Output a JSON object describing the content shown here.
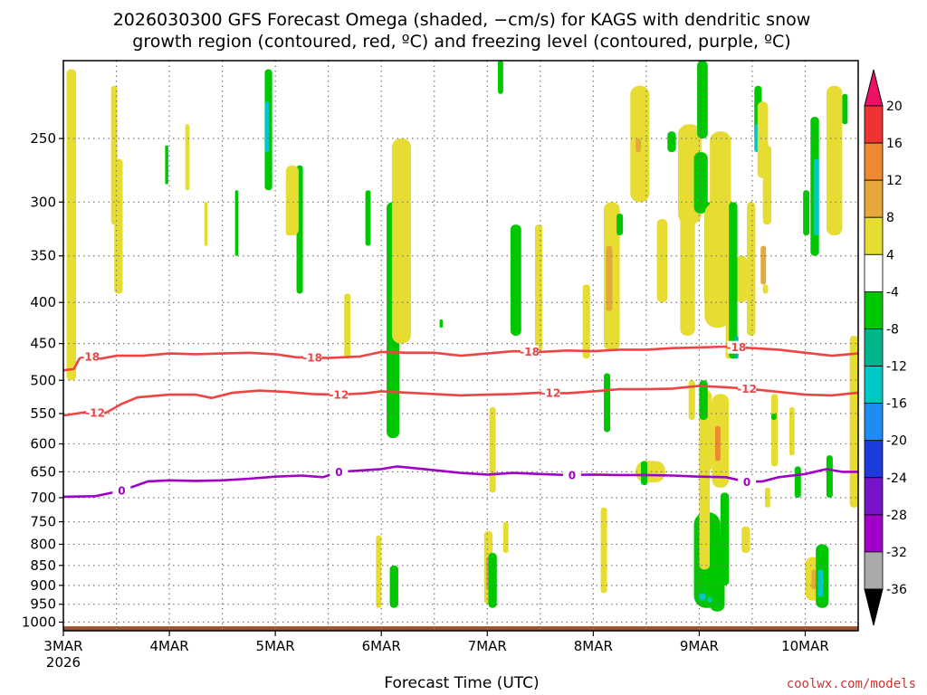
{
  "chart_data": {
    "type": "heatmap",
    "title": "2026030300 GFS Forecast Omega (shaded, −cm/s) for KAGS with dendritic snow",
    "subtitle": "growth region (contoured, red, ºC) and freezing level (contoured, purple, ºC)",
    "xlabel": "Forecast Time (UTC)",
    "ylabel": "",
    "credit": "coolwx.com/models",
    "x_ticks": [
      "3MAR",
      "4MAR",
      "5MAR",
      "6MAR",
      "7MAR",
      "8MAR",
      "9MAR",
      "10MAR"
    ],
    "x_tick_year": "2026",
    "x_range_days": [
      0,
      7.5
    ],
    "y_axis_scale": "log-pressure (inverted)",
    "y_range_hpa": [
      1025,
      200
    ],
    "y_ticks": [
      250,
      300,
      350,
      400,
      450,
      500,
      550,
      600,
      650,
      700,
      750,
      800,
      850,
      900,
      950,
      1000
    ],
    "grid": true,
    "colorbar": {
      "labels": [
        "20",
        "16",
        "12",
        "8",
        "4",
        "-4",
        "-8",
        "-12",
        "-16",
        "-20",
        "-24",
        "-28",
        "-32",
        "-36"
      ],
      "colors": [
        "#ee1166",
        "#ee3333",
        "#ee8833",
        "#e6a83a",
        "#e6dc32",
        "#ffffff",
        "#00c800",
        "#00b48c",
        "#00c8c8",
        "#1e8cf0",
        "#1e3cdc",
        "#7814c8",
        "#a000c8",
        "#aaaaaa",
        "#000000"
      ]
    },
    "omega_colors": {
      "yellow": "#e6dc32",
      "orange": "#e6a83a",
      "darkorange": "#ee8833",
      "green": "#00c800",
      "teal": "#00b48c",
      "cyan": "#00c8c8"
    },
    "ground_color": "#a0522d",
    "contours": [
      {
        "name": "-18",
        "color": "#ee4444",
        "points": [
          [
            0,
            486
          ],
          [
            0.1,
            484
          ],
          [
            0.15,
            470
          ],
          [
            0.2,
            466
          ],
          [
            0.35,
            470
          ],
          [
            0.5,
            466
          ],
          [
            0.75,
            466
          ],
          [
            1,
            463
          ],
          [
            1.25,
            464
          ],
          [
            1.5,
            463
          ],
          [
            1.75,
            462
          ],
          [
            2,
            464
          ],
          [
            2.2,
            468
          ],
          [
            2.5,
            469
          ],
          [
            2.8,
            467
          ],
          [
            3,
            461
          ],
          [
            3.25,
            462
          ],
          [
            3.5,
            462
          ],
          [
            3.75,
            466
          ],
          [
            4,
            463
          ],
          [
            4.25,
            460
          ],
          [
            4.5,
            461
          ],
          [
            4.75,
            459
          ],
          [
            5,
            460
          ],
          [
            5.25,
            458
          ],
          [
            5.5,
            458
          ],
          [
            5.75,
            456
          ],
          [
            6,
            455
          ],
          [
            6.25,
            454
          ],
          [
            6.5,
            456
          ],
          [
            6.75,
            458
          ],
          [
            7,
            462
          ],
          [
            7.25,
            466
          ],
          [
            7.5,
            463
          ]
        ],
        "labels": [
          [
            0.25,
            "-18"
          ],
          [
            2.35,
            "-18"
          ],
          [
            4.4,
            "-18"
          ],
          [
            6.35,
            "-18"
          ]
        ]
      },
      {
        "name": "-12",
        "color": "#ee4444",
        "points": [
          [
            0,
            553
          ],
          [
            0.2,
            548
          ],
          [
            0.4,
            549
          ],
          [
            0.55,
            535
          ],
          [
            0.7,
            525
          ],
          [
            1,
            521
          ],
          [
            1.25,
            521
          ],
          [
            1.4,
            526
          ],
          [
            1.6,
            518
          ],
          [
            1.85,
            515
          ],
          [
            2.1,
            517
          ],
          [
            2.35,
            520
          ],
          [
            2.6,
            521
          ],
          [
            2.85,
            519
          ],
          [
            3,
            516
          ],
          [
            3.25,
            518
          ],
          [
            3.5,
            520
          ],
          [
            3.75,
            522
          ],
          [
            4,
            521
          ],
          [
            4.25,
            520
          ],
          [
            4.5,
            518
          ],
          [
            4.75,
            519
          ],
          [
            5,
            516
          ],
          [
            5.25,
            513
          ],
          [
            5.5,
            513
          ],
          [
            5.75,
            512
          ],
          [
            6,
            508
          ],
          [
            6.25,
            510
          ],
          [
            6.5,
            513
          ],
          [
            6.75,
            517
          ],
          [
            7,
            521
          ],
          [
            7.25,
            522
          ],
          [
            7.5,
            518
          ]
        ],
        "labels": [
          [
            0.3,
            "-12"
          ],
          [
            2.6,
            "-12"
          ],
          [
            4.6,
            "-12"
          ],
          [
            6.45,
            "-12"
          ]
        ]
      },
      {
        "name": "0",
        "color": "#a000c8",
        "points": [
          [
            0,
            698
          ],
          [
            0.3,
            697
          ],
          [
            0.55,
            686
          ],
          [
            0.8,
            668
          ],
          [
            1,
            666
          ],
          [
            1.25,
            667
          ],
          [
            1.5,
            666
          ],
          [
            1.75,
            663
          ],
          [
            2,
            659
          ],
          [
            2.25,
            657
          ],
          [
            2.45,
            660
          ],
          [
            2.6,
            650
          ],
          [
            2.85,
            647
          ],
          [
            3,
            645
          ],
          [
            3.15,
            640
          ],
          [
            3.3,
            643
          ],
          [
            3.5,
            647
          ],
          [
            3.75,
            652
          ],
          [
            4,
            655
          ],
          [
            4.25,
            652
          ],
          [
            4.5,
            654
          ],
          [
            4.75,
            656
          ],
          [
            5,
            655
          ],
          [
            5.25,
            656
          ],
          [
            5.5,
            656
          ],
          [
            5.75,
            657
          ],
          [
            6,
            659
          ],
          [
            6.25,
            660
          ],
          [
            6.45,
            669
          ],
          [
            6.6,
            668
          ],
          [
            6.75,
            660
          ],
          [
            7,
            654
          ],
          [
            7.2,
            645
          ],
          [
            7.35,
            650
          ],
          [
            7.5,
            650
          ]
        ],
        "labels": [
          [
            0.55,
            "0"
          ],
          [
            2.6,
            "0"
          ],
          [
            4.8,
            "0"
          ],
          [
            6.45,
            "0"
          ]
        ]
      }
    ],
    "omega_regions": [
      {
        "c": "yellow",
        "d": 0.03,
        "w": 0.09,
        "p1": 205,
        "p2": 500
      },
      {
        "c": "yellow",
        "d": 0.45,
        "w": 0.06,
        "p1": 215,
        "p2": 320
      },
      {
        "c": "yellow",
        "d": 0.48,
        "w": 0.08,
        "p1": 265,
        "p2": 390
      },
      {
        "c": "green",
        "d": 0.96,
        "w": 0.03,
        "p1": 255,
        "p2": 285
      },
      {
        "c": "yellow",
        "d": 1.15,
        "w": 0.04,
        "p1": 240,
        "p2": 290
      },
      {
        "c": "yellow",
        "d": 1.33,
        "w": 0.03,
        "p1": 300,
        "p2": 340
      },
      {
        "c": "green",
        "d": 1.62,
        "w": 0.03,
        "p1": 290,
        "p2": 350
      },
      {
        "c": "green",
        "d": 1.9,
        "w": 0.07,
        "p1": 205,
        "p2": 290
      },
      {
        "c": "cyan",
        "d": 1.9,
        "w": 0.04,
        "p1": 225,
        "p2": 260
      },
      {
        "c": "yellow",
        "d": 2.1,
        "w": 0.05,
        "p1": 280,
        "p2": 330
      },
      {
        "c": "green",
        "d": 2.2,
        "w": 0.06,
        "p1": 270,
        "p2": 390
      },
      {
        "c": "yellow",
        "d": 2.1,
        "w": 0.12,
        "p1": 270,
        "p2": 330
      },
      {
        "c": "yellow",
        "d": 2.65,
        "w": 0.06,
        "p1": 390,
        "p2": 470
      },
      {
        "c": "green",
        "d": 2.85,
        "w": 0.05,
        "p1": 290,
        "p2": 340
      },
      {
        "c": "green",
        "d": 3.05,
        "w": 0.12,
        "p1": 300,
        "p2": 590
      },
      {
        "c": "yellow",
        "d": 3.1,
        "w": 0.18,
        "p1": 250,
        "p2": 450
      },
      {
        "c": "yellow",
        "d": 2.95,
        "w": 0.05,
        "p1": 780,
        "p2": 960
      },
      {
        "c": "green",
        "d": 3.08,
        "w": 0.08,
        "p1": 850,
        "p2": 960
      },
      {
        "c": "green",
        "d": 3.55,
        "w": 0.03,
        "p1": 420,
        "p2": 430
      },
      {
        "c": "yellow",
        "d": 3.97,
        "w": 0.08,
        "p1": 770,
        "p2": 950
      },
      {
        "c": "orange",
        "d": 3.99,
        "w": 0.04,
        "p1": 830,
        "p2": 910
      },
      {
        "c": "yellow",
        "d": 4.02,
        "w": 0.06,
        "p1": 540,
        "p2": 690
      },
      {
        "c": "green",
        "d": 4.01,
        "w": 0.08,
        "p1": 820,
        "p2": 960
      },
      {
        "c": "green",
        "d": 4.22,
        "w": 0.1,
        "p1": 320,
        "p2": 440
      },
      {
        "c": "yellow",
        "d": 4.15,
        "w": 0.05,
        "p1": 750,
        "p2": 820
      },
      {
        "c": "green",
        "d": 4.1,
        "w": 0.05,
        "p1": 200,
        "p2": 220
      },
      {
        "c": "yellow",
        "d": 4.45,
        "w": 0.07,
        "p1": 320,
        "p2": 460
      },
      {
        "c": "yellow",
        "d": 4.9,
        "w": 0.07,
        "p1": 380,
        "p2": 470
      },
      {
        "c": "yellow",
        "d": 5.07,
        "w": 0.06,
        "p1": 720,
        "p2": 920
      },
      {
        "c": "yellow",
        "d": 5.1,
        "w": 0.15,
        "p1": 300,
        "p2": 460
      },
      {
        "c": "orange",
        "d": 5.12,
        "w": 0.06,
        "p1": 340,
        "p2": 410
      },
      {
        "c": "green",
        "d": 5.1,
        "w": 0.06,
        "p1": 490,
        "p2": 580
      },
      {
        "c": "yellow",
        "d": 5.35,
        "w": 0.18,
        "p1": 215,
        "p2": 300
      },
      {
        "c": "orange",
        "d": 5.4,
        "w": 0.05,
        "p1": 250,
        "p2": 260
      },
      {
        "c": "green",
        "d": 5.22,
        "w": 0.06,
        "p1": 310,
        "p2": 330
      },
      {
        "c": "yellow",
        "d": 5.6,
        "w": 0.1,
        "p1": 315,
        "p2": 400
      },
      {
        "c": "green",
        "d": 5.7,
        "w": 0.08,
        "p1": 245,
        "p2": 260
      },
      {
        "c": "yellow",
        "d": 5.4,
        "w": 0.28,
        "p1": 630,
        "p2": 670
      },
      {
        "c": "green",
        "d": 5.45,
        "w": 0.06,
        "p1": 630,
        "p2": 675
      },
      {
        "c": "yellow",
        "d": 5.82,
        "w": 0.14,
        "p1": 300,
        "p2": 440
      },
      {
        "c": "yellow",
        "d": 5.8,
        "w": 0.22,
        "p1": 240,
        "p2": 320
      },
      {
        "c": "yellow",
        "d": 5.9,
        "w": 0.06,
        "p1": 500,
        "p2": 560
      },
      {
        "c": "green",
        "d": 5.95,
        "w": 0.13,
        "p1": 260,
        "p2": 310
      },
      {
        "c": "green",
        "d": 5.98,
        "w": 0.1,
        "p1": 200,
        "p2": 250
      },
      {
        "c": "yellow",
        "d": 6.0,
        "w": 0.12,
        "p1": 515,
        "p2": 650
      },
      {
        "c": "orange",
        "d": 6.13,
        "w": 0.05,
        "p1": 590,
        "p2": 630
      },
      {
        "c": "green",
        "d": 6.05,
        "w": 0.07,
        "p1": 300,
        "p2": 400
      },
      {
        "c": "yellow",
        "d": 6.1,
        "w": 0.2,
        "p1": 245,
        "p2": 320
      },
      {
        "c": "yellow",
        "d": 6.05,
        "w": 0.25,
        "p1": 300,
        "p2": 430
      },
      {
        "c": "green",
        "d": 5.95,
        "w": 0.25,
        "p1": 730,
        "p2": 960
      },
      {
        "c": "cyan",
        "d": 6.0,
        "w": 0.06,
        "p1": 920,
        "p2": 940
      },
      {
        "c": "green",
        "d": 6.0,
        "w": 0.08,
        "p1": 500,
        "p2": 560
      },
      {
        "c": "yellow",
        "d": 6.25,
        "w": 0.06,
        "p1": 400,
        "p2": 470
      },
      {
        "c": "yellow",
        "d": 6.35,
        "w": 0.1,
        "p1": 350,
        "p2": 400
      },
      {
        "c": "green",
        "d": 6.28,
        "w": 0.08,
        "p1": 300,
        "p2": 470
      },
      {
        "c": "teal",
        "d": 6.33,
        "w": 0.04,
        "p1": 440,
        "p2": 470
      },
      {
        "c": "yellow",
        "d": 6.4,
        "w": 0.08,
        "p1": 760,
        "p2": 820
      },
      {
        "c": "yellow",
        "d": 6.45,
        "w": 0.08,
        "p1": 300,
        "p2": 440
      },
      {
        "c": "green",
        "d": 6.52,
        "w": 0.07,
        "p1": 215,
        "p2": 250
      },
      {
        "c": "cyan",
        "d": 6.52,
        "w": 0.05,
        "p1": 240,
        "p2": 260
      },
      {
        "c": "yellow",
        "d": 6.55,
        "w": 0.1,
        "p1": 225,
        "p2": 280
      },
      {
        "c": "yellow",
        "d": 6.6,
        "w": 0.08,
        "p1": 255,
        "p2": 320
      },
      {
        "c": "orange",
        "d": 6.58,
        "w": 0.05,
        "p1": 340,
        "p2": 380
      },
      {
        "c": "yellow",
        "d": 6.6,
        "w": 0.05,
        "p1": 380,
        "p2": 390
      },
      {
        "c": "yellow",
        "d": 6.62,
        "w": 0.05,
        "p1": 680,
        "p2": 720
      },
      {
        "c": "yellow",
        "d": 6.68,
        "w": 0.06,
        "p1": 520,
        "p2": 640
      },
      {
        "c": "green",
        "d": 6.68,
        "w": 0.05,
        "p1": 550,
        "p2": 560
      },
      {
        "c": "yellow",
        "d": 6.85,
        "w": 0.05,
        "p1": 540,
        "p2": 620
      },
      {
        "c": "yellow",
        "d": 7.0,
        "w": 0.15,
        "p1": 830,
        "p2": 940
      },
      {
        "c": "orange",
        "d": 7.06,
        "w": 0.04,
        "p1": 860,
        "p2": 910
      },
      {
        "c": "green",
        "d": 7.1,
        "w": 0.12,
        "p1": 800,
        "p2": 960
      },
      {
        "c": "cyan",
        "d": 7.12,
        "w": 0.05,
        "p1": 860,
        "p2": 930
      },
      {
        "c": "green",
        "d": 6.9,
        "w": 0.06,
        "p1": 640,
        "p2": 700
      },
      {
        "c": "green",
        "d": 7.2,
        "w": 0.06,
        "p1": 620,
        "p2": 700
      },
      {
        "c": "green",
        "d": 7.05,
        "w": 0.08,
        "p1": 235,
        "p2": 350
      },
      {
        "c": "cyan",
        "d": 7.08,
        "w": 0.05,
        "p1": 265,
        "p2": 330
      },
      {
        "c": "green",
        "d": 6.98,
        "w": 0.06,
        "p1": 290,
        "p2": 330
      },
      {
        "c": "yellow",
        "d": 7.2,
        "w": 0.15,
        "p1": 215,
        "p2": 330
      },
      {
        "c": "green",
        "d": 7.35,
        "w": 0.05,
        "p1": 220,
        "p2": 240
      },
      {
        "c": "yellow",
        "d": 7.42,
        "w": 0.08,
        "p1": 440,
        "p2": 720
      }
    ],
    "omega_blobs_deep": [
      {
        "c": "yellow",
        "d": 6.0,
        "w": 0.1,
        "p1": 590,
        "p2": 860
      },
      {
        "c": "yellow",
        "d": 6.12,
        "w": 0.16,
        "p1": 520,
        "p2": 680
      },
      {
        "c": "darkorange",
        "d": 6.15,
        "w": 0.05,
        "p1": 570,
        "p2": 630
      },
      {
        "c": "green",
        "d": 6.1,
        "w": 0.14,
        "p1": 780,
        "p2": 970
      },
      {
        "c": "green",
        "d": 6.2,
        "w": 0.08,
        "p1": 690,
        "p2": 900
      },
      {
        "c": "cyan",
        "d": 6.08,
        "w": 0.04,
        "p1": 930,
        "p2": 945
      }
    ]
  }
}
